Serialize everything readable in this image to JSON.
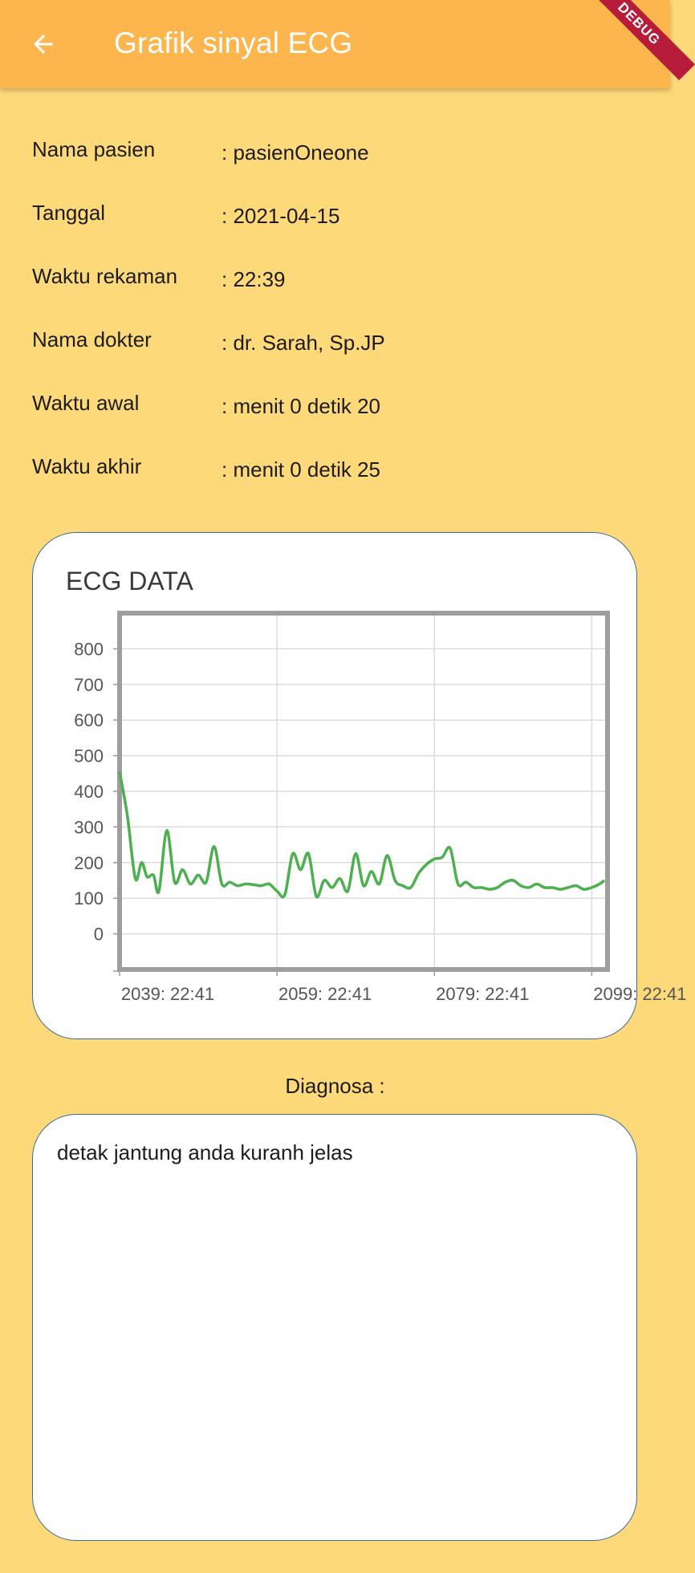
{
  "appbar": {
    "title": "Grafik sinyal ECG",
    "back_icon": "arrow-back-icon",
    "debug_banner": "DEBUG",
    "color": "#FDB64D"
  },
  "info": [
    {
      "label": "Nama pasien",
      "value": ": pasienOneone"
    },
    {
      "label": "Tanggal",
      "value": ": 2021-04-15"
    },
    {
      "label": "Waktu rekaman",
      "value": ": 22:39"
    },
    {
      "label": "Nama dokter",
      "value": ": dr. Sarah, Sp.JP"
    },
    {
      "label": "Waktu awal",
      "value": ": menit 0 detik 20"
    },
    {
      "label": "Waktu akhir",
      "value": ": menit 0 detik 25"
    }
  ],
  "chart_data": {
    "type": "line",
    "title": "ECG DATA",
    "xlabel": "",
    "ylabel": "",
    "ylim": [
      -100,
      900
    ],
    "yticks": [
      0,
      100,
      200,
      300,
      400,
      500,
      600,
      700,
      800
    ],
    "xlim": [
      2039,
      2101
    ],
    "xticks": [
      {
        "value": 2039,
        "label": "2039: 22:41"
      },
      {
        "value": 2059,
        "label": "2059: 22:41"
      },
      {
        "value": 2079,
        "label": "2079: 22:41"
      },
      {
        "value": 2099,
        "label": "2099: 22:41"
      }
    ],
    "grid": true,
    "line_color": "#4CAF50",
    "series": [
      {
        "x": [
          2039,
          2040,
          2041,
          2041.8,
          2042.5,
          2043.3,
          2044,
          2045,
          2046,
          2047,
          2048,
          2049,
          2050,
          2051,
          2052,
          2053,
          2054,
          2055,
          2056,
          2057,
          2058,
          2059,
          2060,
          2061,
          2062,
          2063,
          2064,
          2065,
          2066,
          2067,
          2068,
          2069,
          2070,
          2071,
          2072,
          2073,
          2074,
          2075,
          2076,
          2077,
          2078,
          2079,
          2080,
          2081,
          2082,
          2083,
          2084,
          2085,
          2086,
          2087,
          2088,
          2089,
          2090,
          2091,
          2092,
          2093,
          2094,
          2095,
          2096,
          2097,
          2098,
          2099,
          2100,
          2100.6
        ],
        "values": [
          455,
          330,
          155,
          200,
          160,
          165,
          120,
          290,
          145,
          180,
          140,
          165,
          145,
          245,
          140,
          145,
          135,
          140,
          138,
          135,
          140,
          120,
          110,
          225,
          180,
          225,
          105,
          150,
          130,
          155,
          120,
          225,
          135,
          175,
          140,
          220,
          150,
          135,
          130,
          170,
          195,
          210,
          215,
          240,
          140,
          145,
          130,
          130,
          125,
          130,
          145,
          150,
          135,
          130,
          140,
          130,
          130,
          125,
          130,
          135,
          125,
          130,
          140,
          150
        ]
      }
    ]
  },
  "diagnosis": {
    "label": "Diagnosa :",
    "text": "detak jantung anda kuranh jelas"
  }
}
